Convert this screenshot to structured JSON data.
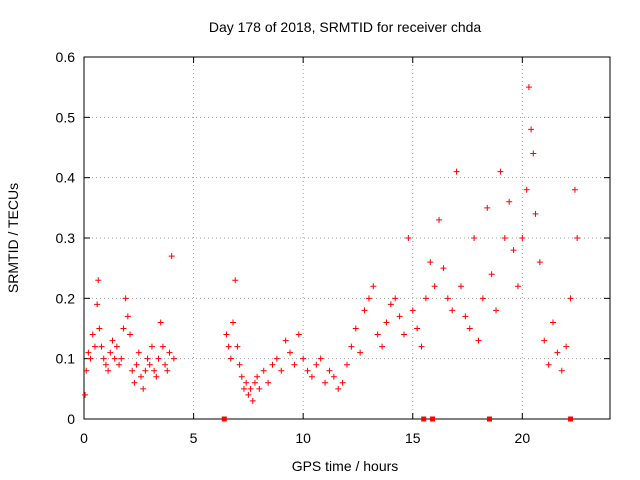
{
  "chart_data": {
    "type": "scatter",
    "title": "Day 178 of 2018, SRMTID for receiver chda",
    "xlabel": "GPS time / hours",
    "ylabel": "SRMTID / TECUs",
    "xlim": [
      0,
      24
    ],
    "ylim": [
      0,
      0.6
    ],
    "xticks": [
      0,
      5,
      10,
      15,
      20
    ],
    "yticks": [
      0,
      0.1,
      0.2,
      0.3,
      0.4,
      0.5,
      0.6
    ],
    "ytick_labels": [
      "0",
      "0.1",
      "0.2",
      "0.3",
      "0.4",
      "0.5",
      "0.6"
    ],
    "grid": true,
    "marker": "+",
    "color": "#ff0000",
    "series": [
      {
        "name": "SRMTID",
        "x": [
          0.05,
          0.1,
          0.2,
          0.3,
          0.4,
          0.5,
          0.6,
          0.65,
          0.7,
          0.8,
          0.9,
          1.0,
          1.1,
          1.2,
          1.3,
          1.4,
          1.5,
          1.6,
          1.7,
          1.8,
          1.9,
          2.0,
          2.1,
          2.2,
          2.3,
          2.4,
          2.5,
          2.6,
          2.7,
          2.8,
          2.9,
          3.0,
          3.1,
          3.2,
          3.3,
          3.4,
          3.5,
          3.6,
          3.7,
          3.8,
          3.9,
          4.0,
          4.1,
          6.5,
          6.6,
          6.7,
          6.8,
          6.9,
          7.0,
          7.1,
          7.2,
          7.3,
          7.4,
          7.5,
          7.6,
          7.7,
          7.8,
          7.9,
          8.0,
          8.2,
          8.4,
          8.6,
          8.8,
          9.0,
          9.2,
          9.4,
          9.6,
          9.8,
          10.0,
          10.2,
          10.4,
          10.6,
          10.8,
          11.0,
          11.2,
          11.4,
          11.6,
          11.8,
          12.0,
          12.2,
          12.4,
          12.6,
          12.8,
          13.0,
          13.2,
          13.4,
          13.6,
          13.8,
          14.0,
          14.2,
          14.4,
          14.6,
          14.8,
          15.0,
          15.2,
          15.4,
          15.6,
          15.8,
          16.0,
          16.2,
          16.4,
          16.6,
          16.8,
          17.0,
          17.2,
          17.4,
          17.6,
          17.8,
          18.0,
          18.2,
          18.4,
          18.6,
          18.8,
          19.0,
          19.2,
          19.4,
          19.6,
          19.8,
          20.0,
          20.2,
          20.3,
          20.4,
          20.5,
          20.6,
          20.8,
          21.0,
          21.2,
          21.4,
          21.6,
          21.8,
          22.0,
          22.2,
          22.4,
          22.5
        ],
        "y": [
          0.04,
          0.08,
          0.11,
          0.1,
          0.14,
          0.12,
          0.19,
          0.23,
          0.15,
          0.12,
          0.1,
          0.09,
          0.08,
          0.11,
          0.13,
          0.1,
          0.12,
          0.09,
          0.1,
          0.15,
          0.2,
          0.17,
          0.14,
          0.08,
          0.06,
          0.09,
          0.11,
          0.07,
          0.05,
          0.08,
          0.1,
          0.09,
          0.12,
          0.08,
          0.07,
          0.1,
          0.16,
          0.12,
          0.09,
          0.08,
          0.11,
          0.27,
          0.1,
          0.14,
          0.12,
          0.1,
          0.16,
          0.23,
          0.12,
          0.09,
          0.07,
          0.05,
          0.06,
          0.04,
          0.05,
          0.03,
          0.06,
          0.07,
          0.05,
          0.08,
          0.06,
          0.09,
          0.1,
          0.08,
          0.13,
          0.11,
          0.09,
          0.14,
          0.1,
          0.08,
          0.07,
          0.09,
          0.1,
          0.06,
          0.08,
          0.07,
          0.05,
          0.06,
          0.09,
          0.12,
          0.15,
          0.11,
          0.18,
          0.2,
          0.22,
          0.14,
          0.12,
          0.16,
          0.19,
          0.2,
          0.17,
          0.14,
          0.3,
          0.18,
          0.15,
          0.12,
          0.2,
          0.26,
          0.22,
          0.33,
          0.25,
          0.2,
          0.18,
          0.41,
          0.22,
          0.17,
          0.15,
          0.3,
          0.13,
          0.2,
          0.35,
          0.24,
          0.18,
          0.41,
          0.3,
          0.36,
          0.28,
          0.22,
          0.3,
          0.38,
          0.55,
          0.48,
          0.44,
          0.34,
          0.26,
          0.13,
          0.09,
          0.16,
          0.11,
          0.08,
          0.12,
          0.2,
          0.38,
          0.3
        ],
        "gap_markers_x": [
          6.4,
          15.5,
          15.9,
          18.5,
          22.2
        ]
      }
    ]
  }
}
